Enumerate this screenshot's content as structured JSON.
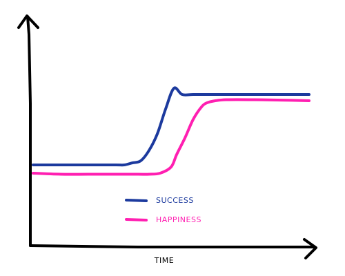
{
  "chart_data": {
    "type": "line",
    "xlabel": "TIME",
    "ylabel": "",
    "xlim": [
      0,
      100
    ],
    "ylim": [
      0,
      100
    ],
    "grid": false,
    "legend_position": "center",
    "series": [
      {
        "name": "SUCCESS",
        "color": "#1c3a9e",
        "x": [
          0,
          10,
          20,
          30,
          33,
          36,
          39,
          42,
          45,
          48,
          51,
          54,
          58,
          65,
          75,
          85,
          95,
          100
        ],
        "y": [
          39,
          39,
          39,
          39,
          39,
          40,
          41,
          46,
          54,
          66,
          76,
          73,
          73,
          73,
          73,
          73,
          73,
          73
        ]
      },
      {
        "name": "HAPPINESS",
        "color": "#ff1fb1",
        "x": [
          0,
          10,
          20,
          30,
          38,
          42,
          46,
          50,
          52,
          55,
          58,
          61,
          63,
          66,
          70,
          80,
          90,
          100
        ],
        "y": [
          35,
          34.5,
          34.5,
          34.5,
          34.5,
          34.5,
          35,
          38,
          44,
          52,
          61,
          67,
          69,
          70,
          70.5,
          70.5,
          70.3,
          70
        ]
      }
    ]
  }
}
